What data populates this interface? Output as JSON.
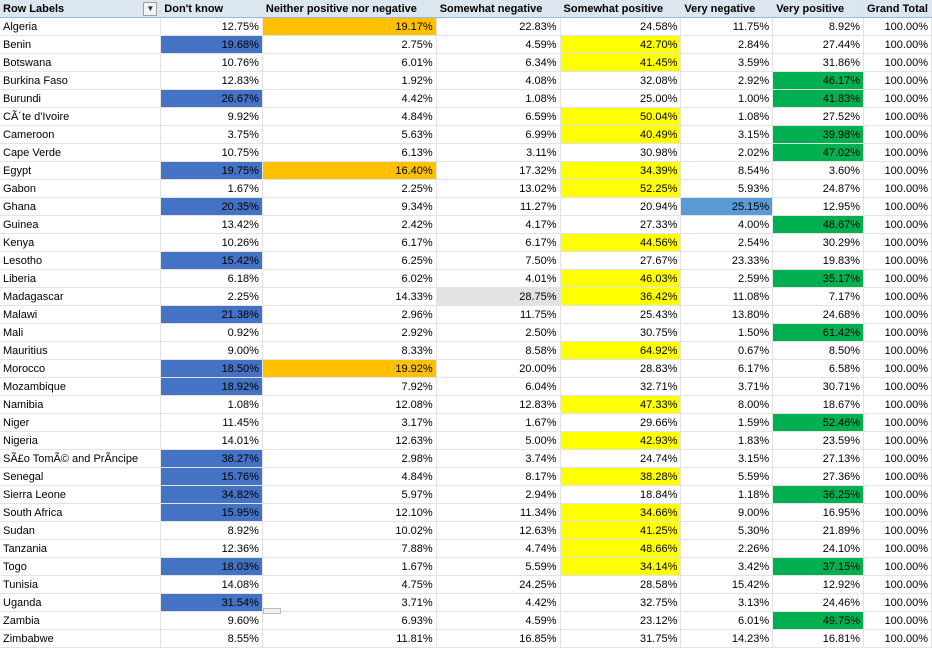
{
  "headers": [
    "Row Labels",
    "Don't know",
    "Neither positive  nor negative",
    "Somewhat  negative",
    "Somewhat  positive",
    "Very  negative",
    "Very  positive",
    "Grand Total"
  ],
  "colors": {
    "blue": "#4472c4",
    "orange": "#ffc000",
    "yellow": "#ffff00",
    "green": "#00b050",
    "lightblue": "#5b9bd5",
    "gray": "#e3e3e3"
  },
  "rows": [
    {
      "cells": [
        "Algeria",
        "12.75%",
        "19.17%",
        "22.83%",
        "24.58%",
        "11.75%",
        "8.92%",
        "100.00%"
      ],
      "fills": [
        "",
        "",
        "orange",
        "",
        "",
        "",
        "",
        ""
      ]
    },
    {
      "cells": [
        "Benin",
        "19.68%",
        "2.75%",
        "4.59%",
        "42.70%",
        "2.84%",
        "27.44%",
        "100.00%"
      ],
      "fills": [
        "",
        "blue",
        "",
        "",
        "yellow",
        "",
        "",
        ""
      ]
    },
    {
      "cells": [
        "Botswana",
        "10.76%",
        "6.01%",
        "6.34%",
        "41.45%",
        "3.59%",
        "31.86%",
        "100.00%"
      ],
      "fills": [
        "",
        "",
        "",
        "",
        "yellow",
        "",
        "",
        ""
      ]
    },
    {
      "cells": [
        "Burkina Faso",
        "12.83%",
        "1.92%",
        "4.08%",
        "32.08%",
        "2.92%",
        "46.17%",
        "100.00%"
      ],
      "fills": [
        "",
        "",
        "",
        "",
        "",
        "",
        "green",
        ""
      ]
    },
    {
      "cells": [
        "Burundi",
        "26.67%",
        "4.42%",
        "1.08%",
        "25.00%",
        "1.00%",
        "41.83%",
        "100.00%"
      ],
      "fills": [
        "",
        "blue",
        "",
        "",
        "",
        "",
        "green",
        ""
      ]
    },
    {
      "cells": [
        "CÃ´te d'Ivoire",
        "9.92%",
        "4.84%",
        "6.59%",
        "50.04%",
        "1.08%",
        "27.52%",
        "100.00%"
      ],
      "fills": [
        "",
        "",
        "",
        "",
        "yellow",
        "",
        "",
        ""
      ]
    },
    {
      "cells": [
        "Cameroon",
        "3.75%",
        "5.63%",
        "6.99%",
        "40.49%",
        "3.15%",
        "39.98%",
        "100.00%"
      ],
      "fills": [
        "",
        "",
        "",
        "",
        "yellow",
        "",
        "green",
        ""
      ]
    },
    {
      "cells": [
        "Cape Verde",
        "10.75%",
        "6.13%",
        "3.11%",
        "30.98%",
        "2.02%",
        "47.02%",
        "100.00%"
      ],
      "fills": [
        "",
        "",
        "",
        "",
        "",
        "",
        "green",
        ""
      ]
    },
    {
      "cells": [
        "Egypt",
        "19.75%",
        "16.40%",
        "17.32%",
        "34.39%",
        "8.54%",
        "3.60%",
        "100.00%"
      ],
      "fills": [
        "",
        "blue",
        "orange",
        "",
        "yellow",
        "",
        "",
        ""
      ]
    },
    {
      "cells": [
        "Gabon",
        "1.67%",
        "2.25%",
        "13.02%",
        "52.25%",
        "5.93%",
        "24.87%",
        "100.00%"
      ],
      "fills": [
        "",
        "",
        "",
        "",
        "yellow",
        "",
        "",
        ""
      ]
    },
    {
      "cells": [
        "Ghana",
        "20.35%",
        "9.34%",
        "11.27%",
        "20.94%",
        "25.15%",
        "12.95%",
        "100.00%"
      ],
      "fills": [
        "",
        "blue",
        "",
        "",
        "",
        "lightblue",
        "",
        ""
      ]
    },
    {
      "cells": [
        "Guinea",
        "13.42%",
        "2.42%",
        "4.17%",
        "27.33%",
        "4.00%",
        "48.67%",
        "100.00%"
      ],
      "fills": [
        "",
        "",
        "",
        "",
        "",
        "",
        "green",
        ""
      ]
    },
    {
      "cells": [
        "Kenya",
        "10.26%",
        "6.17%",
        "6.17%",
        "44.56%",
        "2.54%",
        "30.29%",
        "100.00%"
      ],
      "fills": [
        "",
        "",
        "",
        "",
        "yellow",
        "",
        "",
        ""
      ]
    },
    {
      "cells": [
        "Lesotho",
        "15.42%",
        "6.25%",
        "7.50%",
        "27.67%",
        "23.33%",
        "19.83%",
        "100.00%"
      ],
      "fills": [
        "",
        "blue",
        "",
        "",
        "",
        "",
        "",
        ""
      ]
    },
    {
      "cells": [
        "Liberia",
        "6.18%",
        "6.02%",
        "4.01%",
        "46.03%",
        "2.59%",
        "35.17%",
        "100.00%"
      ],
      "fills": [
        "",
        "",
        "",
        "",
        "yellow",
        "",
        "green",
        ""
      ]
    },
    {
      "cells": [
        "Madagascar",
        "2.25%",
        "14.33%",
        "28.75%",
        "36.42%",
        "11.08%",
        "7.17%",
        "100.00%"
      ],
      "fills": [
        "",
        "",
        "",
        "gray",
        "yellow",
        "",
        "",
        ""
      ]
    },
    {
      "cells": [
        "Malawi",
        "21.38%",
        "2.96%",
        "11.75%",
        "25.43%",
        "13.80%",
        "24.68%",
        "100.00%"
      ],
      "fills": [
        "",
        "blue",
        "",
        "",
        "",
        "",
        "",
        ""
      ]
    },
    {
      "cells": [
        "Mali",
        "0.92%",
        "2.92%",
        "2.50%",
        "30.75%",
        "1.50%",
        "61.42%",
        "100.00%"
      ],
      "fills": [
        "",
        "",
        "",
        "",
        "",
        "",
        "green",
        ""
      ]
    },
    {
      "cells": [
        "Mauritius",
        "9.00%",
        "8.33%",
        "8.58%",
        "64.92%",
        "0.67%",
        "8.50%",
        "100.00%"
      ],
      "fills": [
        "",
        "",
        "",
        "",
        "yellow",
        "",
        "",
        ""
      ]
    },
    {
      "cells": [
        "Morocco",
        "18.50%",
        "19.92%",
        "20.00%",
        "28.83%",
        "6.17%",
        "6.58%",
        "100.00%"
      ],
      "fills": [
        "",
        "blue",
        "orange",
        "",
        "",
        "",
        "",
        ""
      ]
    },
    {
      "cells": [
        "Mozambique",
        "18.92%",
        "7.92%",
        "6.04%",
        "32.71%",
        "3.71%",
        "30.71%",
        "100.00%"
      ],
      "fills": [
        "",
        "blue",
        "",
        "",
        "",
        "",
        "",
        ""
      ]
    },
    {
      "cells": [
        "Namibia",
        "1.08%",
        "12.08%",
        "12.83%",
        "47.33%",
        "8.00%",
        "18.67%",
        "100.00%"
      ],
      "fills": [
        "",
        "",
        "",
        "",
        "yellow",
        "",
        "",
        ""
      ]
    },
    {
      "cells": [
        "Niger",
        "11.45%",
        "3.17%",
        "1.67%",
        "29.66%",
        "1.59%",
        "52.46%",
        "100.00%"
      ],
      "fills": [
        "",
        "",
        "",
        "",
        "",
        "",
        "green",
        ""
      ]
    },
    {
      "cells": [
        "Nigeria",
        "14.01%",
        "12.63%",
        "5.00%",
        "42.93%",
        "1.83%",
        "23.59%",
        "100.00%"
      ],
      "fills": [
        "",
        "",
        "",
        "",
        "yellow",
        "",
        "",
        ""
      ]
    },
    {
      "cells": [
        "SÃ£o TomÃ© and PrÃ­ncipe",
        "38.27%",
        "2.98%",
        "3.74%",
        "24.74%",
        "3.15%",
        "27.13%",
        "100.00%"
      ],
      "fills": [
        "",
        "blue",
        "",
        "",
        "",
        "",
        "",
        ""
      ]
    },
    {
      "cells": [
        "Senegal",
        "15.76%",
        "4.84%",
        "8.17%",
        "38.28%",
        "5.59%",
        "27.36%",
        "100.00%"
      ],
      "fills": [
        "",
        "blue",
        "",
        "",
        "yellow",
        "",
        "",
        ""
      ]
    },
    {
      "cells": [
        "Sierra Leone",
        "34.82%",
        "5.97%",
        "2.94%",
        "18.84%",
        "1.18%",
        "36.25%",
        "100.00%"
      ],
      "fills": [
        "",
        "blue",
        "",
        "",
        "",
        "",
        "green",
        ""
      ]
    },
    {
      "cells": [
        "South Africa",
        "15.95%",
        "12.10%",
        "11.34%",
        "34.66%",
        "9.00%",
        "16.95%",
        "100.00%"
      ],
      "fills": [
        "",
        "blue",
        "",
        "",
        "yellow",
        "",
        "",
        ""
      ]
    },
    {
      "cells": [
        "Sudan",
        "8.92%",
        "10.02%",
        "12.63%",
        "41.25%",
        "5.30%",
        "21.89%",
        "100.00%"
      ],
      "fills": [
        "",
        "",
        "",
        "",
        "yellow",
        "",
        "",
        ""
      ]
    },
    {
      "cells": [
        "Tanzania",
        "12.36%",
        "7.88%",
        "4.74%",
        "48.66%",
        "2.26%",
        "24.10%",
        "100.00%"
      ],
      "fills": [
        "",
        "",
        "",
        "",
        "yellow",
        "",
        "",
        ""
      ]
    },
    {
      "cells": [
        "Togo",
        "18.03%",
        "1.67%",
        "5.59%",
        "34.14%",
        "3.42%",
        "37.15%",
        "100.00%"
      ],
      "fills": [
        "",
        "blue",
        "",
        "",
        "yellow",
        "",
        "green",
        ""
      ]
    },
    {
      "cells": [
        "Tunisia",
        "14.08%",
        "4.75%",
        "24.25%",
        "28.58%",
        "15.42%",
        "12.92%",
        "100.00%"
      ],
      "fills": [
        "",
        "",
        "",
        "",
        "",
        "",
        "",
        ""
      ]
    },
    {
      "cells": [
        "Uganda",
        "31.54%",
        "3.71%",
        "4.42%",
        "32.75%",
        "3.13%",
        "24.46%",
        "100.00%"
      ],
      "fills": [
        "",
        "blue",
        "",
        "",
        "",
        "",
        "",
        ""
      ]
    },
    {
      "cells": [
        "Zambia",
        "9.60%",
        "6.93%",
        "4.59%",
        "23.12%",
        "6.01%",
        "49.75%",
        "100.00%"
      ],
      "fills": [
        "",
        "",
        "",
        "",
        "",
        "",
        "green",
        ""
      ]
    },
    {
      "cells": [
        "Zimbabwe",
        "8.55%",
        "11.81%",
        "16.85%",
        "31.75%",
        "14.23%",
        "16.81%",
        "100.00%"
      ],
      "fills": [
        "",
        "",
        "",
        "",
        "",
        "",
        "",
        ""
      ]
    }
  ]
}
